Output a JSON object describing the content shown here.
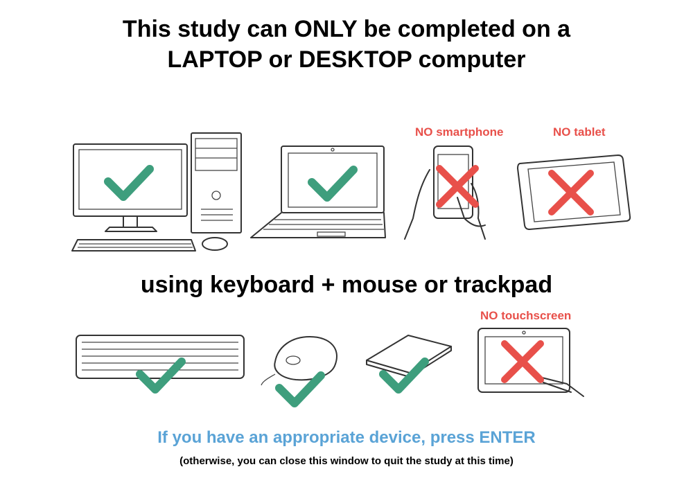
{
  "heading": {
    "line1": "This study can ONLY be completed on a",
    "line2": "LAPTOP or DESKTOP computer"
  },
  "devices": [
    {
      "name": "desktop computer",
      "allowed": true,
      "icon": "desktop-computer-icon"
    },
    {
      "name": "laptop",
      "allowed": true,
      "icon": "laptop-icon"
    },
    {
      "name": "smartphone",
      "allowed": false,
      "label": "NO smartphone",
      "icon": "smartphone-icon"
    },
    {
      "name": "tablet",
      "allowed": false,
      "label": "NO tablet",
      "icon": "tablet-icon"
    }
  ],
  "input_heading": "using keyboard + mouse or trackpad",
  "inputs": [
    {
      "name": "keyboard",
      "allowed": true,
      "icon": "keyboard-icon"
    },
    {
      "name": "mouse",
      "allowed": true,
      "icon": "mouse-icon"
    },
    {
      "name": "trackpad",
      "allowed": true,
      "icon": "trackpad-icon"
    },
    {
      "name": "touchscreen",
      "allowed": false,
      "label": "NO touchscreen",
      "icon": "touchscreen-icon"
    }
  ],
  "instruction": "If you have an appropriate device, press ENTER",
  "note": "(otherwise, you can close this window to quit the study at this time)",
  "colors": {
    "check": "#3e9e7d",
    "cross": "#e8504a",
    "instruction": "#5aa3d6"
  }
}
